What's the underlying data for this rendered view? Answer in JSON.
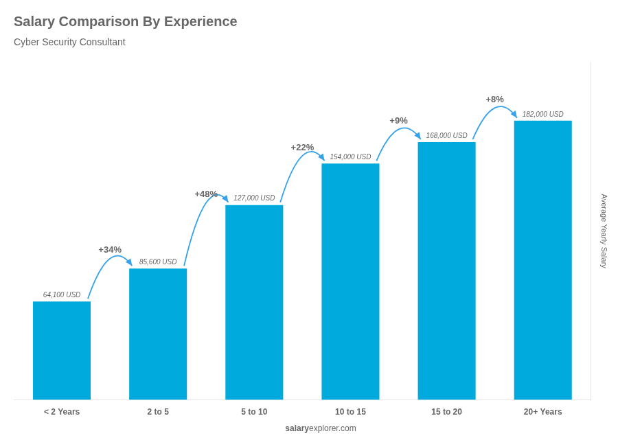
{
  "chart_data": {
    "type": "bar",
    "title": "Salary Comparison By Experience",
    "subtitle": "Cyber Security Consultant",
    "ylabel": "Average Yearly Salary",
    "categories": [
      "< 2 Years",
      "2 to 5",
      "5 to 10",
      "10 to 15",
      "15 to 20",
      "20+ Years"
    ],
    "values": [
      64100,
      85600,
      127000,
      154000,
      168000,
      182000
    ],
    "value_labels": [
      "64,100 USD",
      "85,600 USD",
      "127,000 USD",
      "154,000 USD",
      "168,000 USD",
      "182,000 USD"
    ],
    "data_labels": true,
    "annotations": [
      {
        "text": "+34%",
        "between": [
          "< 2 Years",
          "2 to 5"
        ]
      },
      {
        "text": "+48%",
        "between": [
          "2 to 5",
          "5 to 10"
        ]
      },
      {
        "text": "+22%",
        "between": [
          "5 to 10",
          "10 to 15"
        ]
      },
      {
        "text": "+9%",
        "between": [
          "10 to 15",
          "15 to 20"
        ]
      },
      {
        "text": "+8%",
        "between": [
          "15 to 20",
          "20+ Years"
        ]
      }
    ],
    "footer": [
      "salary",
      "explorer.com"
    ],
    "color": "#00aadd",
    "ylim": [
      0,
      220000
    ],
    "tick_labels": "x",
    "grid": false
  }
}
